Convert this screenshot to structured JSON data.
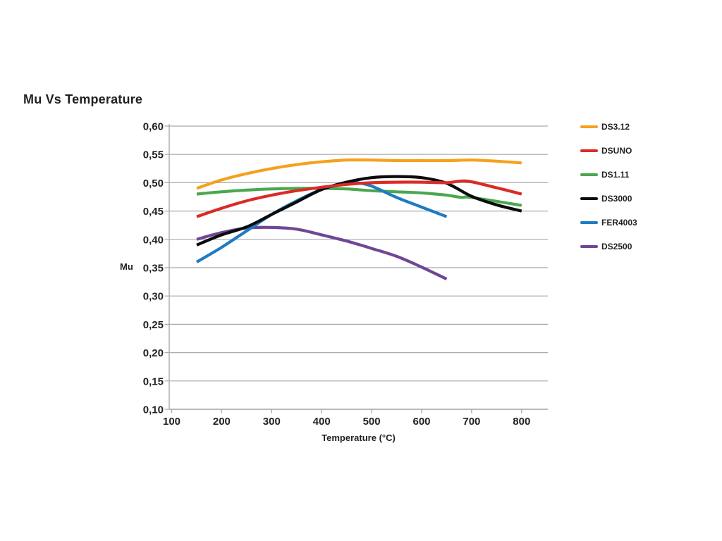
{
  "title": "Mu Vs Temperature",
  "chart_data": {
    "type": "line",
    "title": "Mu Vs Temperature",
    "xlabel": "Temperature (°C)",
    "ylabel": "Mu",
    "xlim": [
      95,
      852
    ],
    "ylim": [
      0.1,
      0.6
    ],
    "grid": "horizontal",
    "grid_color": "#a7a9ac",
    "legend_position": "right",
    "x_ticks": [
      100,
      200,
      300,
      400,
      500,
      600,
      700,
      800
    ],
    "x_tick_labels": [
      "100",
      "200",
      "300",
      "400",
      "500",
      "600",
      "700",
      "800"
    ],
    "y_ticks": [
      0.1,
      0.15,
      0.2,
      0.25,
      0.3,
      0.35,
      0.4,
      0.45,
      0.5,
      0.55,
      0.6
    ],
    "y_tick_labels": [
      "0,10",
      "0,15",
      "0,20",
      "0,25",
      "0,30",
      "0,35",
      "0,40",
      "0,45",
      "0,50",
      "0,55",
      "0,60"
    ],
    "series": [
      {
        "name": "DS3.12",
        "color": "#f5a11d",
        "points": [
          [
            150,
            0.49
          ],
          [
            200,
            0.505
          ],
          [
            250,
            0.516
          ],
          [
            300,
            0.525
          ],
          [
            350,
            0.532
          ],
          [
            400,
            0.537
          ],
          [
            450,
            0.54
          ],
          [
            500,
            0.54
          ],
          [
            550,
            0.539
          ],
          [
            600,
            0.539
          ],
          [
            650,
            0.539
          ],
          [
            700,
            0.54
          ],
          [
            750,
            0.538
          ],
          [
            800,
            0.535
          ]
        ]
      },
      {
        "name": "DSUNO",
        "color": "#db2b26",
        "points": [
          [
            150,
            0.44
          ],
          [
            200,
            0.455
          ],
          [
            250,
            0.468
          ],
          [
            300,
            0.478
          ],
          [
            350,
            0.486
          ],
          [
            400,
            0.492
          ],
          [
            450,
            0.497
          ],
          [
            500,
            0.5
          ],
          [
            550,
            0.501
          ],
          [
            600,
            0.501
          ],
          [
            650,
            0.5
          ],
          [
            690,
            0.503
          ],
          [
            750,
            0.491
          ],
          [
            800,
            0.48
          ]
        ]
      },
      {
        "name": "DS1.11",
        "color": "#4ba74f",
        "points": [
          [
            150,
            0.48
          ],
          [
            200,
            0.484
          ],
          [
            250,
            0.487
          ],
          [
            300,
            0.489
          ],
          [
            350,
            0.49
          ],
          [
            400,
            0.49
          ],
          [
            450,
            0.489
          ],
          [
            500,
            0.486
          ],
          [
            550,
            0.484
          ],
          [
            600,
            0.482
          ],
          [
            650,
            0.478
          ],
          [
            680,
            0.474
          ],
          [
            700,
            0.474
          ],
          [
            800,
            0.46
          ]
        ]
      },
      {
        "name": "DS3000",
        "color": "#0b0b0b",
        "points": [
          [
            150,
            0.39
          ],
          [
            200,
            0.408
          ],
          [
            250,
            0.422
          ],
          [
            300,
            0.444
          ],
          [
            350,
            0.466
          ],
          [
            400,
            0.488
          ],
          [
            450,
            0.501
          ],
          [
            500,
            0.509
          ],
          [
            550,
            0.511
          ],
          [
            600,
            0.509
          ],
          [
            650,
            0.499
          ],
          [
            700,
            0.476
          ],
          [
            750,
            0.461
          ],
          [
            800,
            0.45
          ]
        ]
      },
      {
        "name": "FER4003",
        "color": "#1e7bc2",
        "points": [
          [
            150,
            0.36
          ],
          [
            200,
            0.386
          ],
          [
            250,
            0.415
          ],
          [
            300,
            0.444
          ],
          [
            350,
            0.468
          ],
          [
            400,
            0.488
          ],
          [
            450,
            0.499
          ],
          [
            470,
            0.5
          ],
          [
            500,
            0.494
          ],
          [
            550,
            0.474
          ],
          [
            600,
            0.457
          ],
          [
            650,
            0.44
          ]
        ]
      },
      {
        "name": "DS2500",
        "color": "#6f4795",
        "points": [
          [
            150,
            0.4
          ],
          [
            200,
            0.412
          ],
          [
            250,
            0.42
          ],
          [
            300,
            0.421
          ],
          [
            350,
            0.418
          ],
          [
            400,
            0.408
          ],
          [
            450,
            0.397
          ],
          [
            500,
            0.384
          ],
          [
            550,
            0.37
          ],
          [
            600,
            0.351
          ],
          [
            650,
            0.33
          ]
        ]
      }
    ]
  }
}
